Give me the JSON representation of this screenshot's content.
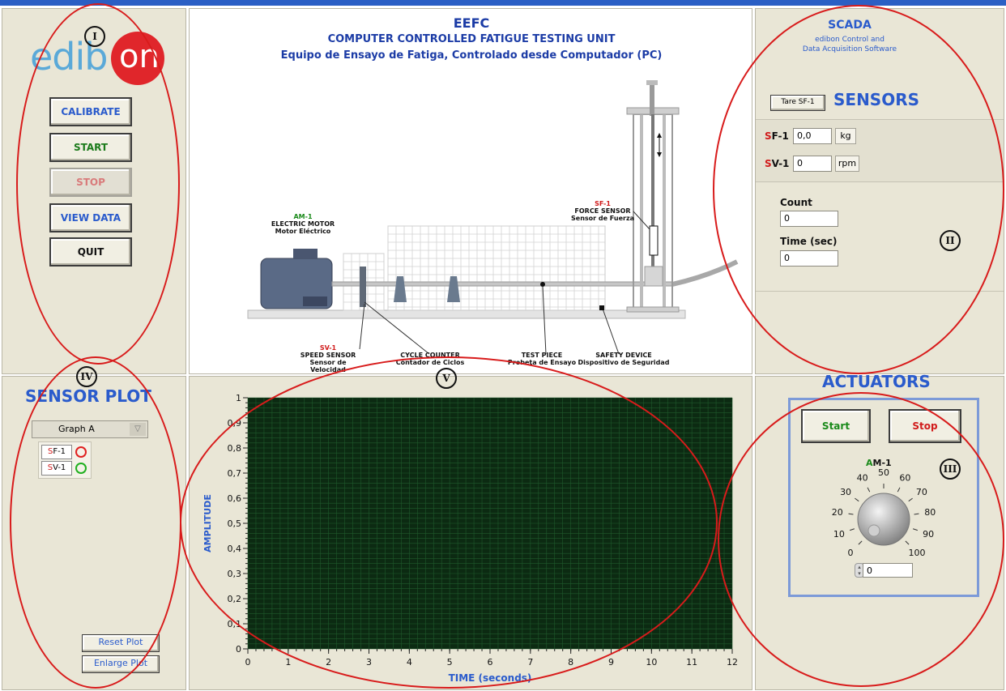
{
  "logo": {
    "text_a": "edib",
    "text_b": "on"
  },
  "controls": {
    "calibrate": "CALIBRATE",
    "start": "START",
    "stop": "STOP",
    "view_data": "VIEW DATA",
    "quit": "QUIT"
  },
  "header": {
    "code": "EEFC",
    "title_en": "COMPUTER CONTROLLED FATIGUE TESTING UNIT",
    "title_es": "Equipo de Ensayo de Fatiga, Controlado desde Computador (PC)"
  },
  "diagram": {
    "motor": {
      "tag": "AM-1",
      "name": "ELECTRIC MOTOR",
      "name_es": "Motor Eléctrico"
    },
    "force": {
      "tag": "SF-1",
      "name": "FORCE SENSOR",
      "name_es": "Sensor de Fuerza"
    },
    "speed": {
      "tag": "SV-1",
      "name": "SPEED SENSOR",
      "name_es": "Sensor de Velocidad"
    },
    "counter": {
      "name": "CYCLE COUNTER",
      "name_es": "Contador de Ciclos"
    },
    "piece": {
      "name": "TEST PIECE",
      "name_es": "Probeta de Ensayo"
    },
    "safety": {
      "name": "SAFETY DEVICE",
      "name_es": "Dispositivo de Seguridad"
    }
  },
  "scada": {
    "title": "SCADA",
    "line1": "edibon Control and",
    "line2": "Data Acquisition Software"
  },
  "sensors": {
    "title": "SENSORS",
    "tare_label": "Tare SF-1",
    "sf1": {
      "tag_a": "S",
      "tag_b": "F-1",
      "value": "0,0",
      "unit": "kg"
    },
    "sv1": {
      "tag_a": "S",
      "tag_b": "V-1",
      "value": "0",
      "unit": "rpm"
    },
    "count_label": "Count",
    "count_value": "0",
    "time_label": "Time (sec)",
    "time_value": "0"
  },
  "actuators": {
    "title": "ACTUATORS",
    "start": "Start",
    "stop": "Stop",
    "knob_tag_a": "A",
    "knob_tag_b": "M-1",
    "knob_value": "0",
    "knob_ticks": [
      "0",
      "10",
      "20",
      "30",
      "40",
      "50",
      "60",
      "70",
      "80",
      "90",
      "100"
    ]
  },
  "sensor_plot": {
    "title": "SENSOR PLOT",
    "graph_select": "Graph A",
    "legend": [
      {
        "tag_a": "S",
        "tag_b": "F-1",
        "color": "#e02020"
      },
      {
        "tag_a": "S",
        "tag_b": "V-1",
        "color": "#20b020"
      }
    ],
    "reset": "Reset Plot",
    "enlarge": "Enlarge Plot"
  },
  "plot": {
    "xlabel": "TIME  (seconds)",
    "ylabel": "AMPLITUDE",
    "xticks": [
      "0",
      "1",
      "2",
      "3",
      "4",
      "5",
      "6",
      "7",
      "8",
      "9",
      "10",
      "11",
      "12"
    ],
    "yticks": [
      "0",
      "0,1",
      "0,2",
      "0,3",
      "0,4",
      "0,5",
      "0,6",
      "0,7",
      "0,8",
      "0,9",
      "1"
    ],
    "bg_color": "#0c2a12",
    "grid_color": "#1f5a2c"
  },
  "annotations": [
    "I",
    "II",
    "III",
    "IV",
    "V"
  ]
}
